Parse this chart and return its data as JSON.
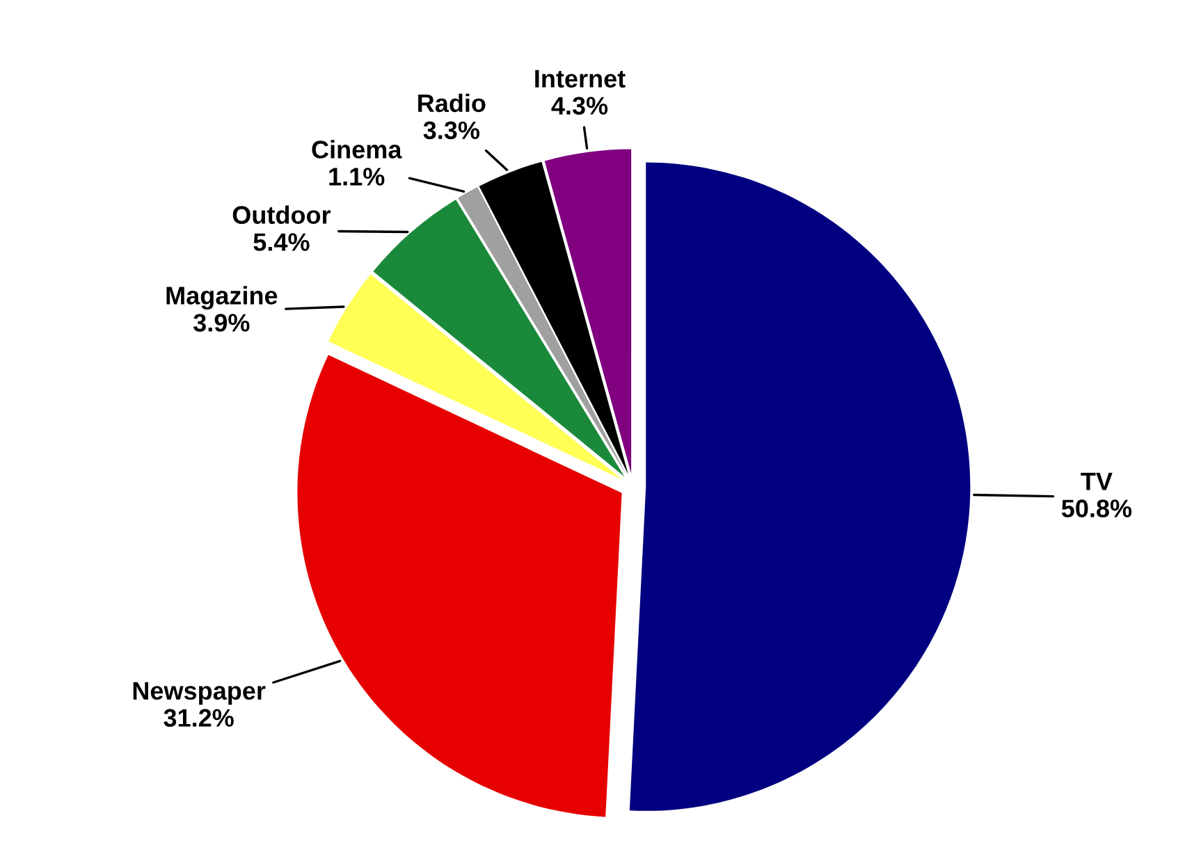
{
  "chart_data": {
    "type": "pie",
    "categories": [
      "TV",
      "Newspaper",
      "Magazine",
      "Outdoor",
      "Cinema",
      "Radio",
      "Internet"
    ],
    "values": [
      50.8,
      31.2,
      3.9,
      5.4,
      1.1,
      3.3,
      4.3
    ],
    "colors": [
      "#000080",
      "#e60000",
      "#ffff55",
      "#1a8a3a",
      "#a0a0a0",
      "#000000",
      "#800080"
    ],
    "value_labels": [
      "50.8%",
      "31.2%",
      "3.9%",
      "5.4%",
      "1.1%",
      "3.3%",
      "4.3%"
    ],
    "legend": false
  }
}
